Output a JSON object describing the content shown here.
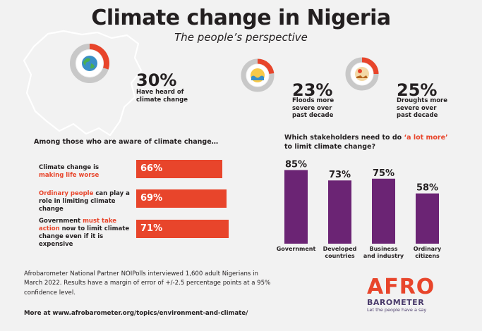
{
  "header": {
    "title": "Climate change in Nigeria",
    "subtitle": "The people’s perspective"
  },
  "stats": {
    "heard": {
      "value": "30%",
      "text_line1": "Have heard of",
      "text_line2": "climate change",
      "fraction": 0.3
    },
    "floods": {
      "value": "23%",
      "text_line1": "Floods more",
      "text_line2": "severe over",
      "text_line3": "past decade",
      "fraction": 0.23
    },
    "droughts": {
      "value": "25%",
      "text_line1": "Droughts more",
      "text_line2": "severe over",
      "text_line3": "past decade",
      "fraction": 0.25
    }
  },
  "aware": {
    "heading": "Among those who are aware of climate change…",
    "items": [
      {
        "pre": "Climate change is",
        "accent": "making life worse",
        "post": "",
        "label": "66%",
        "value": 66
      },
      {
        "pre": "",
        "accent": "Ordinary people",
        "post": " can play a role in limiting climate change",
        "label": "69%",
        "value": 69
      },
      {
        "pre": "Government ",
        "accent": "must take action",
        "post": " now to limit climate change even if it is expensive",
        "label": "71%",
        "value": 71
      }
    ]
  },
  "stakeholders": {
    "heading_pre": "Which stakeholders need to do ",
    "heading_accent": "‘a lot more’",
    "heading_post": "to limit climate change?"
  },
  "chart_data": [
    {
      "type": "bar",
      "orientation": "horizontal",
      "categories": [
        "Climate change is making life worse",
        "Ordinary people can play a role in limiting climate change",
        "Government must take action now to limit climate change even if it is expensive"
      ],
      "values": [
        66,
        69,
        71
      ],
      "data_labels": [
        "66%",
        "69%",
        "71%"
      ],
      "xlim": [
        0,
        100
      ]
    },
    {
      "type": "bar",
      "categories": [
        "Government",
        "Developed countries",
        "Business and industry",
        "Ordinary citizens"
      ],
      "category_lines": [
        [
          "Government"
        ],
        [
          "Developed",
          "countries"
        ],
        [
          "Business",
          "and industry"
        ],
        [
          "Ordinary",
          "citizens"
        ]
      ],
      "values": [
        85,
        73,
        75,
        58
      ],
      "data_labels": [
        "85%",
        "73%",
        "75%",
        "58%"
      ],
      "ylim": [
        0,
        100
      ],
      "color": "#6b2474"
    }
  ],
  "footer": {
    "line1": "Afrobarometer National Partner NOIPolls interviewed 1,600 adult Nigerians in",
    "line2": "March 2022. Results have a margin of error of +/-2.5 percentage points at a 95%",
    "line3": "confidence level.",
    "link": "More at www.afrobarometer.org/topics/environment-and-climate/"
  },
  "logo": {
    "afro": "AFRO",
    "barometer": "BAROMETER",
    "tagline": "Let the people have a say"
  },
  "colors": {
    "accent": "#e8452b",
    "bar_purple": "#6b2474",
    "ring_grey": "#c8c8c8",
    "background": "#f2f2f2"
  }
}
